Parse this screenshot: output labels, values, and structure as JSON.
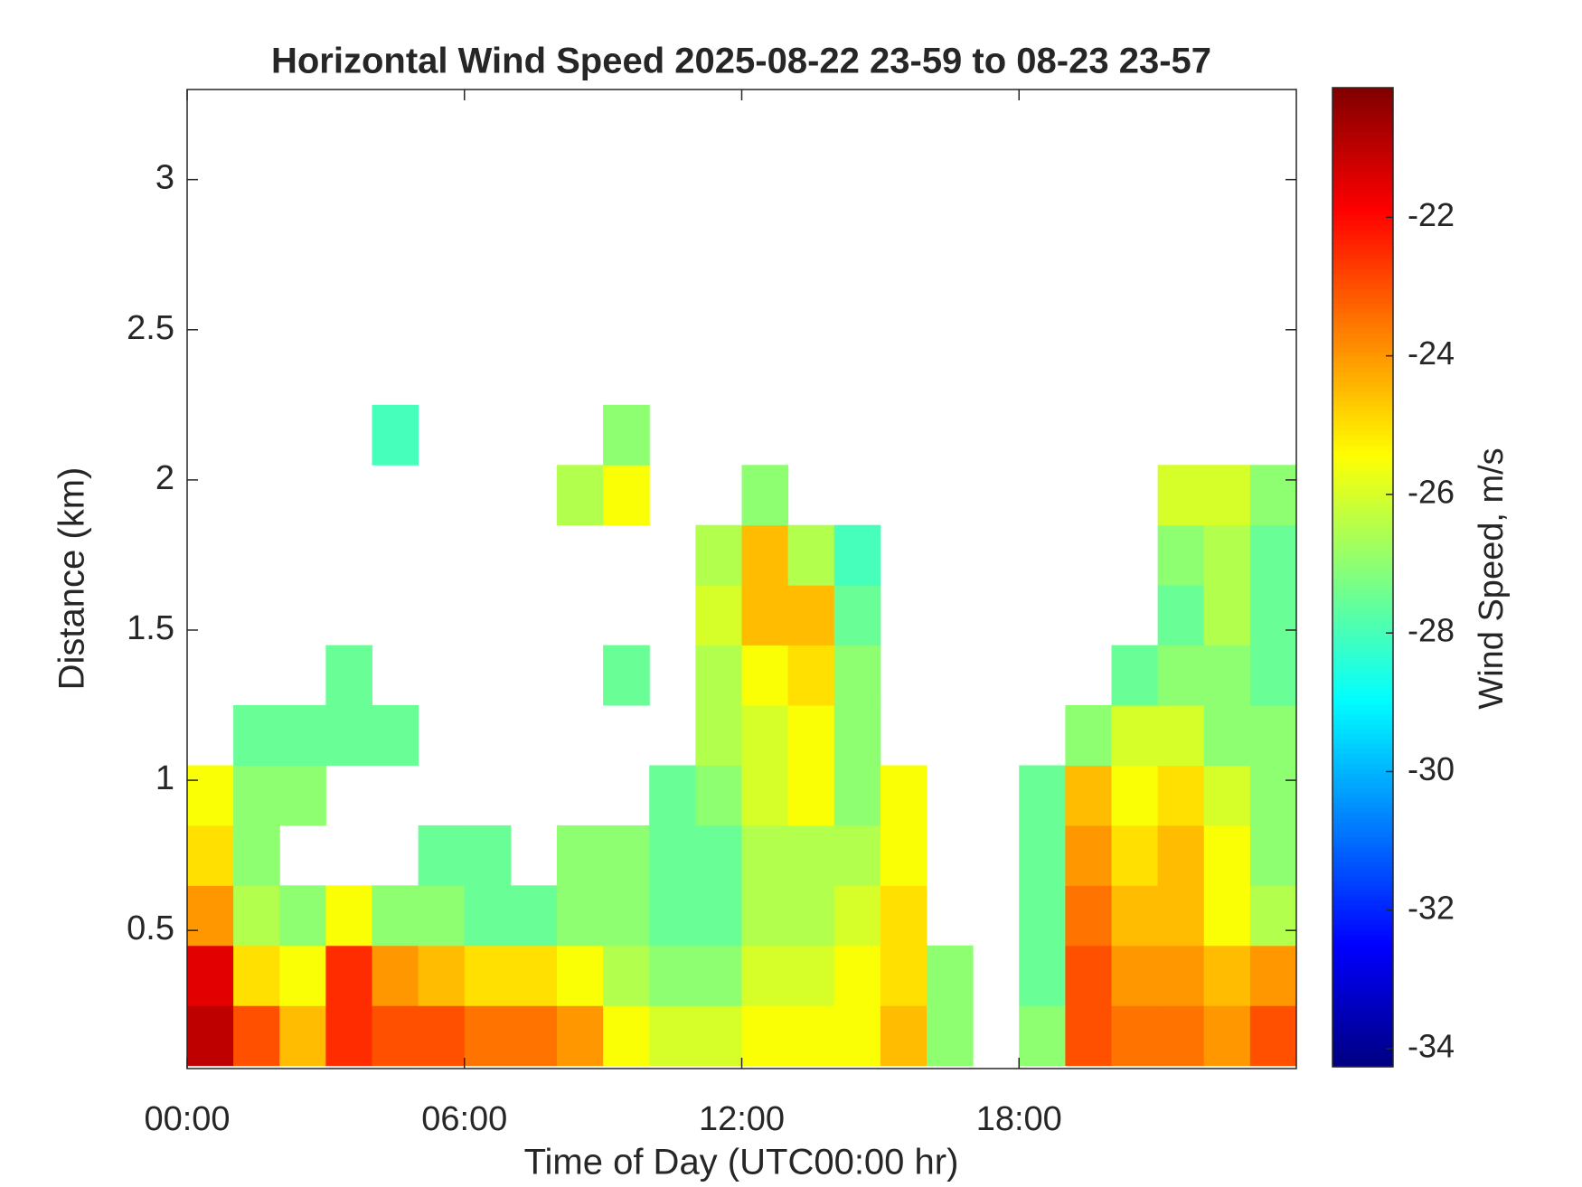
{
  "chart_data": {
    "type": "heatmap",
    "title": "Horizontal Wind Speed 2025-08-22 23-59 to 08-23 23-57",
    "x_label": "Time of Day (UTC00:00 hr)",
    "y_label": "Distance (km)",
    "colorbar_label": "Wind Speed, m/s",
    "colormap": "jet",
    "x_bins": [
      0,
      1,
      2,
      3,
      4,
      5,
      6,
      7,
      8,
      9,
      10,
      11,
      12,
      13,
      14,
      15,
      16,
      17,
      18,
      19,
      20,
      21,
      22,
      23,
      24
    ],
    "y_bins": [
      0.05,
      0.25,
      0.45,
      0.65,
      0.85,
      1.05,
      1.25,
      1.45,
      1.65,
      1.85,
      2.05,
      2.25
    ],
    "values": [
      [
        -21,
        -23,
        -24.5,
        -22.5,
        -23,
        -23,
        -23.5,
        -23.5,
        -24,
        -25.5,
        -26,
        -26,
        -25.5,
        -25.5,
        -25.5,
        -24.5,
        -27,
        null,
        -27,
        -23,
        -23.5,
        -23.5,
        -24,
        -23
      ],
      [
        -21.5,
        -25,
        -25.5,
        -22.5,
        -24,
        -24.5,
        -25,
        -25,
        -25.5,
        -26.5,
        -27,
        -27,
        -26,
        -26,
        -25.5,
        -25,
        -27,
        null,
        -27.5,
        -23,
        -24,
        -24,
        -24.5,
        -24
      ],
      [
        -24,
        -26.5,
        -27,
        -25.5,
        -27,
        -27,
        -27.5,
        -27.5,
        -27,
        -27,
        -27.5,
        -27.5,
        -26.5,
        -26.5,
        -26,
        -25,
        null,
        null,
        -27.5,
        -23.5,
        -24.5,
        -24.5,
        -25.5,
        -26.5
      ],
      [
        -25,
        -27,
        null,
        null,
        null,
        -27.5,
        -27.5,
        null,
        -27,
        -27,
        -27.5,
        -27.5,
        -26.5,
        -26.5,
        -26.5,
        -25.5,
        null,
        null,
        -27.5,
        -24,
        -25,
        -24.5,
        -25.5,
        -27
      ],
      [
        -25.5,
        -27,
        -27,
        null,
        null,
        null,
        null,
        null,
        null,
        null,
        -27.5,
        -27,
        -26,
        -25.5,
        -27,
        -25.5,
        null,
        null,
        -27.5,
        -24.5,
        -25.5,
        -25,
        -26,
        -27
      ],
      [
        null,
        -27.5,
        -27.5,
        -27.5,
        -27.5,
        null,
        null,
        null,
        null,
        null,
        null,
        -26.5,
        -26,
        -25.5,
        -27,
        null,
        null,
        null,
        null,
        -27,
        -26,
        -26,
        -27,
        -27
      ],
      [
        null,
        null,
        null,
        -27.5,
        null,
        null,
        null,
        null,
        null,
        -27.5,
        null,
        -26.5,
        -25.5,
        -25,
        -27,
        null,
        null,
        null,
        null,
        null,
        -27.5,
        -27,
        -27,
        -27.5
      ],
      [
        null,
        null,
        null,
        null,
        null,
        null,
        null,
        null,
        null,
        null,
        null,
        -26,
        -24.5,
        -24.5,
        -27.5,
        null,
        null,
        null,
        null,
        null,
        null,
        -27.5,
        -26.5,
        -27.5
      ],
      [
        null,
        null,
        null,
        null,
        null,
        null,
        null,
        null,
        null,
        null,
        null,
        -26.5,
        -24.5,
        -26.5,
        -28,
        null,
        null,
        null,
        null,
        null,
        null,
        -27,
        -26.5,
        -27.5
      ],
      [
        null,
        null,
        null,
        null,
        null,
        null,
        null,
        null,
        -26.5,
        -25.5,
        null,
        null,
        -27,
        null,
        null,
        null,
        null,
        null,
        null,
        null,
        null,
        -26,
        -26,
        -27
      ],
      [
        null,
        null,
        null,
        null,
        -28,
        null,
        null,
        null,
        null,
        -27,
        null,
        null,
        null,
        null,
        null,
        null,
        null,
        null,
        null,
        null,
        null,
        null,
        null,
        null
      ]
    ],
    "xlim": [
      0,
      24
    ],
    "xticks": [
      {
        "value": 0,
        "label": "00:00"
      },
      {
        "value": 6,
        "label": "06:00"
      },
      {
        "value": 12,
        "label": "12:00"
      },
      {
        "value": 18,
        "label": "18:00"
      }
    ],
    "ylim": [
      0.04,
      3.3
    ],
    "yticks": [
      0.5,
      1,
      1.5,
      2,
      2.5,
      3
    ],
    "clim": [
      -34.26,
      -20.13
    ],
    "cticks": [
      -34,
      -32,
      -30,
      -28,
      -26,
      -24,
      -22
    ]
  }
}
